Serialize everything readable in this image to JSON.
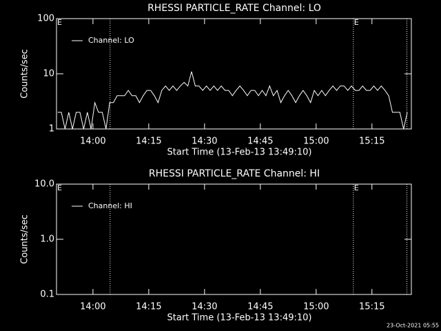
{
  "chart_data": [
    {
      "type": "line",
      "title": "RHESSI PARTICLE_RATE Channel: LO",
      "x_label": "Start Time (13-Feb-13 13:49:10)",
      "y_label": "Counts/sec",
      "x": [
        830.5,
        831.5,
        832.5,
        833.5,
        834.5,
        835.5,
        836.5,
        837.5,
        838.5,
        839.5,
        840.5,
        841.5,
        842.5,
        843.5,
        844.5,
        845.5,
        846.5,
        847.5,
        848.5,
        849.5,
        850.5,
        851.5,
        852.5,
        853.5,
        854.5,
        855.5,
        856.5,
        857.5,
        858.5,
        859.5,
        860.5,
        861.5,
        862.5,
        863.5,
        864.5,
        865.5,
        866.5,
        867.5,
        868.5,
        869.5,
        870.5,
        871.5,
        872.5,
        873.5,
        874.5,
        875.5,
        876.5,
        877.5,
        878.5,
        879.5,
        880.5,
        881.5,
        882.5,
        883.5,
        884.5,
        885.5,
        886.5,
        887.5,
        888.5,
        889.5,
        890.5,
        891.5,
        892.5,
        893.5,
        894.5,
        895.5,
        896.5,
        897.5,
        898.5,
        899.5,
        900.5,
        901.5,
        902.5,
        903.5,
        904.5,
        905.5,
        906.5,
        907.5,
        908.5,
        909.5,
        910.5,
        911.5,
        912.5,
        913.5,
        914.5,
        915.5,
        916.5,
        917.5,
        918.5,
        919.5,
        920.5,
        921.5,
        922.5,
        923.5,
        924.5
      ],
      "series": [
        {
          "name": "Channel: LO",
          "color": "#ffffff",
          "values": [
            2,
            2,
            1,
            2,
            1,
            2,
            2,
            1,
            2,
            1,
            3,
            2,
            2,
            1,
            3,
            3,
            4,
            4,
            4,
            5,
            4,
            4,
            3,
            4,
            5,
            5,
            4,
            3,
            5,
            6,
            5,
            6,
            5,
            6,
            7,
            6,
            11,
            6,
            6,
            5,
            6,
            5,
            6,
            5,
            6,
            5,
            5,
            4,
            5,
            6,
            5,
            4,
            5,
            5,
            4,
            5,
            4,
            6,
            4,
            5,
            3,
            4,
            5,
            4,
            3,
            4,
            5,
            4,
            3,
            5,
            4,
            5,
            4,
            5,
            6,
            5,
            6,
            6,
            5,
            6,
            5,
            5,
            6,
            5,
            5,
            6,
            5,
            6,
            5,
            4,
            2,
            2,
            2,
            1,
            2
          ]
        }
      ],
      "xlim": [
        830.2,
        925.6
      ],
      "xticks": [
        {
          "value": 840,
          "label": "14:00"
        },
        {
          "value": 855,
          "label": "14:15"
        },
        {
          "value": 870,
          "label": "14:30"
        },
        {
          "value": 885,
          "label": "14:45"
        },
        {
          "value": 900,
          "label": "15:00"
        },
        {
          "value": 915,
          "label": "15:15"
        }
      ],
      "ylim": [
        1,
        100
      ],
      "yticks": [
        1,
        10,
        100
      ],
      "log_y": true,
      "legend": "upper left",
      "vlines": [
        844.6,
        910,
        924.4
      ],
      "annotations": [
        {
          "text": "E",
          "x": 830.2
        },
        {
          "text": "E",
          "x": 910
        }
      ]
    },
    {
      "type": "line",
      "title": "RHESSI PARTICLE_RATE Channel: HI",
      "x_label": "Start Time (13-Feb-13 13:49:10)",
      "y_label": "Counts/sec",
      "x": [],
      "series": [
        {
          "name": "Channel: HI",
          "color": "#ffffff",
          "values": []
        }
      ],
      "xlim": [
        830.2,
        925.6
      ],
      "xticks": [
        {
          "value": 840,
          "label": "14:00"
        },
        {
          "value": 855,
          "label": "14:15"
        },
        {
          "value": 870,
          "label": "14:30"
        },
        {
          "value": 885,
          "label": "14:45"
        },
        {
          "value": 900,
          "label": "15:00"
        },
        {
          "value": 915,
          "label": "15:15"
        }
      ],
      "ylim": [
        0.1,
        10
      ],
      "yticks": [
        {
          "value": 0.1,
          "label": "0.1"
        },
        {
          "value": 1,
          "label": "1.0"
        },
        {
          "value": 10,
          "label": "10.0"
        }
      ],
      "log_y": true,
      "legend": "upper left",
      "vlines": [
        844.6,
        910,
        924.4
      ],
      "annotations": [
        {
          "text": "E",
          "x": 830.2
        },
        {
          "text": "E",
          "x": 910
        }
      ]
    }
  ],
  "footer": "23-Oct-2021 05:55"
}
